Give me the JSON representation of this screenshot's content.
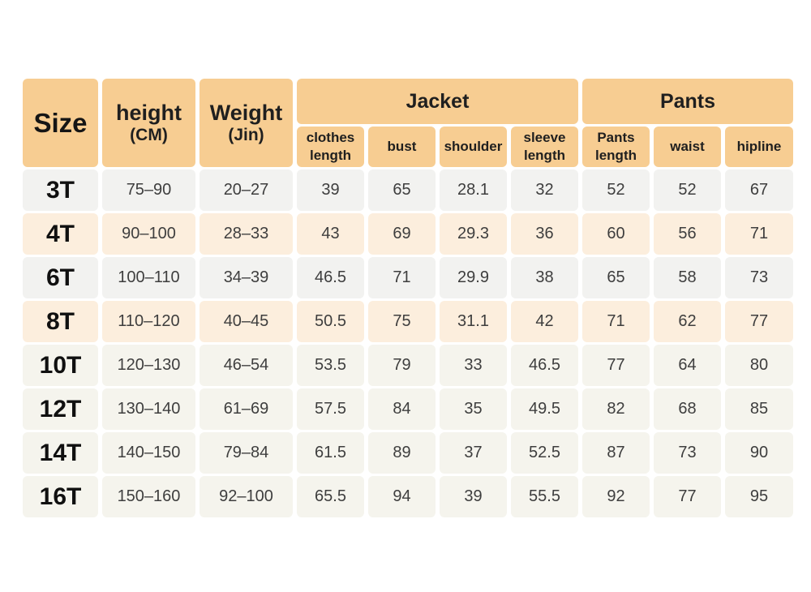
{
  "colors": {
    "header_bg": "#f7cd92",
    "row_gray": "#f2f2f0",
    "row_peach": "#fceedd",
    "row_cream": "#f5f4ed",
    "page_bg": "#ffffff"
  },
  "table": {
    "size_header": "Size",
    "height_header": {
      "main": "height",
      "sub": "(CM)"
    },
    "weight_header": {
      "main": "Weight",
      "sub": "(Jin)"
    },
    "groups": [
      {
        "label": "Jacket"
      },
      {
        "label": "Pants"
      }
    ],
    "sub_headers": [
      "clothes length",
      "bust",
      "shoulder",
      "sleeve length",
      "Pants length",
      "waist",
      "hipline"
    ],
    "rows": [
      {
        "size": "3T",
        "cells": [
          "75–90",
          "20–27",
          "39",
          "65",
          "28.1",
          "32",
          "52",
          "52",
          "67"
        ]
      },
      {
        "size": "4T",
        "cells": [
          "90–100",
          "28–33",
          "43",
          "69",
          "29.3",
          "36",
          "60",
          "56",
          "71"
        ]
      },
      {
        "size": "6T",
        "cells": [
          "100–110",
          "34–39",
          "46.5",
          "71",
          "29.9",
          "38",
          "65",
          "58",
          "73"
        ]
      },
      {
        "size": "8T",
        "cells": [
          "110–120",
          "40–45",
          "50.5",
          "75",
          "31.1",
          "42",
          "71",
          "62",
          "77"
        ]
      },
      {
        "size": "10T",
        "cells": [
          "120–130",
          "46–54",
          "53.5",
          "79",
          "33",
          "46.5",
          "77",
          "64",
          "80"
        ]
      },
      {
        "size": "12T",
        "cells": [
          "130–140",
          "61–69",
          "57.5",
          "84",
          "35",
          "49.5",
          "82",
          "68",
          "85"
        ]
      },
      {
        "size": "14T",
        "cells": [
          "140–150",
          "79–84",
          "61.5",
          "89",
          "37",
          "52.5",
          "87",
          "73",
          "90"
        ]
      },
      {
        "size": "16T",
        "cells": [
          "150–160",
          "92–100",
          "65.5",
          "94",
          "39",
          "55.5",
          "92",
          "77",
          "95"
        ]
      }
    ]
  },
  "chart_data": {
    "type": "table",
    "columns": [
      "Size",
      "height (CM)",
      "Weight (Jin)",
      "Jacket clothes length",
      "Jacket bust",
      "Jacket shoulder",
      "Jacket sleeve length",
      "Pants length",
      "Pants waist",
      "Pants hipline"
    ],
    "column_groups": [
      {
        "label": "Jacket",
        "columns": [
          "clothes length",
          "bust",
          "shoulder",
          "sleeve length"
        ]
      },
      {
        "label": "Pants",
        "columns": [
          "Pants length",
          "waist",
          "hipline"
        ]
      }
    ],
    "rows": [
      [
        "3T",
        "75–90",
        "20–27",
        39,
        65,
        28.1,
        32,
        52,
        52,
        67
      ],
      [
        "4T",
        "90–100",
        "28–33",
        43,
        69,
        29.3,
        36,
        60,
        56,
        71
      ],
      [
        "6T",
        "100–110",
        "34–39",
        46.5,
        71,
        29.9,
        38,
        65,
        58,
        73
      ],
      [
        "8T",
        "110–120",
        "40–45",
        50.5,
        75,
        31.1,
        42,
        71,
        62,
        77
      ],
      [
        "10T",
        "120–130",
        "46–54",
        53.5,
        79,
        33,
        46.5,
        77,
        64,
        80
      ],
      [
        "12T",
        "130–140",
        "61–69",
        57.5,
        84,
        35,
        49.5,
        82,
        68,
        85
      ],
      [
        "14T",
        "140–150",
        "79–84",
        61.5,
        89,
        37,
        52.5,
        87,
        73,
        90
      ],
      [
        "16T",
        "150–160",
        "92–100",
        65.5,
        94,
        39,
        55.5,
        92,
        77,
        95
      ]
    ]
  }
}
